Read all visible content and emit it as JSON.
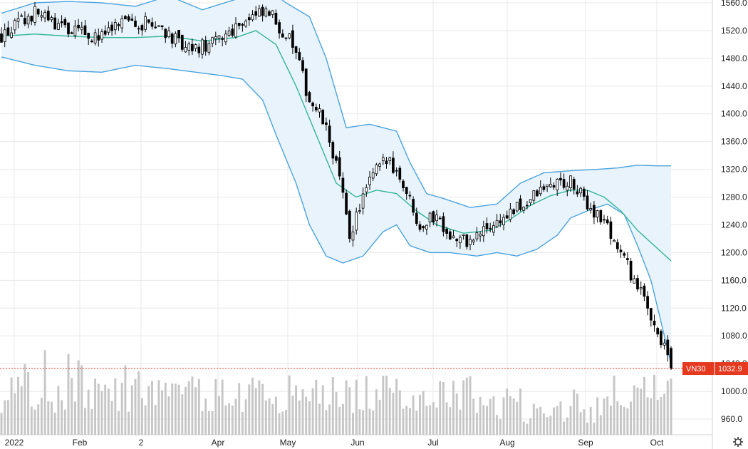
{
  "chart_data": {
    "type": "candlestick",
    "symbol": "VN30",
    "last_price_label": "1032.9",
    "last_price": 1032.9,
    "x_tick_labels": [
      "2022",
      "Feb",
      "2",
      "Apr",
      "May",
      "Jun",
      "Jul",
      "Aug",
      "Sep",
      "Oct"
    ],
    "y_ticks": [
      960,
      1000,
      1040,
      1080,
      1120,
      1160,
      1200,
      1240,
      1280,
      1320,
      1360,
      1400,
      1440,
      1480,
      1520,
      1560
    ],
    "y_tick_labels": [
      "960.0",
      "1000.0",
      "1040.0",
      "1080.0",
      "1120.0",
      "1160.0",
      "1200.0",
      "1240.0",
      "1280.0",
      "1320.0",
      "1360.0",
      "1400.0",
      "1440.0",
      "1480.0",
      "1520.0",
      "1560.0"
    ],
    "ylim": [
      945,
      1565
    ],
    "grid": true,
    "indicators": [
      "bollinger-bands",
      "volume"
    ],
    "close_anchors": [
      [
        0,
        1512
      ],
      [
        10,
        1545
      ],
      [
        20,
        1520
      ],
      [
        30,
        1510
      ],
      [
        38,
        1535
      ],
      [
        48,
        1525
      ],
      [
        55,
        1490
      ],
      [
        63,
        1500
      ],
      [
        72,
        1535
      ],
      [
        80,
        1545
      ],
      [
        87,
        1500
      ],
      [
        92,
        1420
      ],
      [
        96,
        1390
      ],
      [
        100,
        1330
      ],
      [
        104,
        1225
      ],
      [
        108,
        1280
      ],
      [
        112,
        1320
      ],
      [
        116,
        1335
      ],
      [
        120,
        1300
      ],
      [
        125,
        1240
      ],
      [
        130,
        1255
      ],
      [
        135,
        1220
      ],
      [
        140,
        1215
      ],
      [
        145,
        1235
      ],
      [
        150,
        1250
      ],
      [
        155,
        1265
      ],
      [
        160,
        1285
      ],
      [
        165,
        1300
      ],
      [
        170,
        1300
      ],
      [
        175,
        1270
      ],
      [
        180,
        1245
      ],
      [
        185,
        1200
      ],
      [
        190,
        1150
      ],
      [
        195,
        1100
      ],
      [
        200,
        1035
      ]
    ],
    "bb_upper": [
      [
        0,
        1545
      ],
      [
        10,
        1560
      ],
      [
        20,
        1562
      ],
      [
        30,
        1560
      ],
      [
        40,
        1555
      ],
      [
        50,
        1570
      ],
      [
        60,
        1550
      ],
      [
        70,
        1565
      ],
      [
        78,
        1585
      ],
      [
        85,
        1560
      ],
      [
        92,
        1540
      ],
      [
        97,
        1480
      ],
      [
        103,
        1380
      ],
      [
        110,
        1385
      ],
      [
        118,
        1375
      ],
      [
        122,
        1330
      ],
      [
        127,
        1285
      ],
      [
        132,
        1278
      ],
      [
        140,
        1265
      ],
      [
        148,
        1270
      ],
      [
        155,
        1300
      ],
      [
        162,
        1315
      ],
      [
        170,
        1318
      ],
      [
        178,
        1320
      ],
      [
        184,
        1322
      ],
      [
        190,
        1326
      ],
      [
        196,
        1325
      ],
      [
        200,
        1325
      ]
    ],
    "bb_lower": [
      [
        0,
        1482
      ],
      [
        10,
        1470
      ],
      [
        20,
        1462
      ],
      [
        30,
        1460
      ],
      [
        40,
        1470
      ],
      [
        50,
        1465
      ],
      [
        58,
        1460
      ],
      [
        66,
        1455
      ],
      [
        72,
        1450
      ],
      [
        78,
        1420
      ],
      [
        82,
        1370
      ],
      [
        88,
        1300
      ],
      [
        92,
        1240
      ],
      [
        97,
        1195
      ],
      [
        102,
        1185
      ],
      [
        108,
        1195
      ],
      [
        114,
        1230
      ],
      [
        118,
        1240
      ],
      [
        122,
        1210
      ],
      [
        128,
        1200
      ],
      [
        134,
        1200
      ],
      [
        142,
        1195
      ],
      [
        148,
        1200
      ],
      [
        154,
        1195
      ],
      [
        160,
        1205
      ],
      [
        166,
        1225
      ],
      [
        170,
        1250
      ],
      [
        176,
        1262
      ],
      [
        181,
        1270
      ],
      [
        186,
        1255
      ],
      [
        190,
        1210
      ],
      [
        194,
        1160
      ],
      [
        197,
        1100
      ],
      [
        200,
        1040
      ]
    ],
    "bb_middle": [
      [
        0,
        1512
      ],
      [
        10,
        1515
      ],
      [
        20,
        1512
      ],
      [
        30,
        1510
      ],
      [
        40,
        1510
      ],
      [
        50,
        1512
      ],
      [
        60,
        1505
      ],
      [
        70,
        1510
      ],
      [
        76,
        1520
      ],
      [
        82,
        1500
      ],
      [
        88,
        1440
      ],
      [
        94,
        1370
      ],
      [
        100,
        1300
      ],
      [
        106,
        1280
      ],
      [
        112,
        1290
      ],
      [
        118,
        1285
      ],
      [
        124,
        1260
      ],
      [
        130,
        1240
      ],
      [
        138,
        1228
      ],
      [
        146,
        1232
      ],
      [
        152,
        1248
      ],
      [
        158,
        1268
      ],
      [
        164,
        1282
      ],
      [
        170,
        1290
      ],
      [
        175,
        1290
      ],
      [
        180,
        1280
      ],
      [
        185,
        1260
      ],
      [
        190,
        1232
      ],
      [
        195,
        1210
      ],
      [
        200,
        1188
      ]
    ],
    "colors": {
      "candle": "#000000",
      "bb_line": "#4aa3df",
      "bb_middle": "#33b599",
      "bb_fill": "#e8f3fb",
      "volume": "#c6c6c6",
      "grid": "#e8e8e8",
      "last_price": "#e5391f"
    }
  }
}
